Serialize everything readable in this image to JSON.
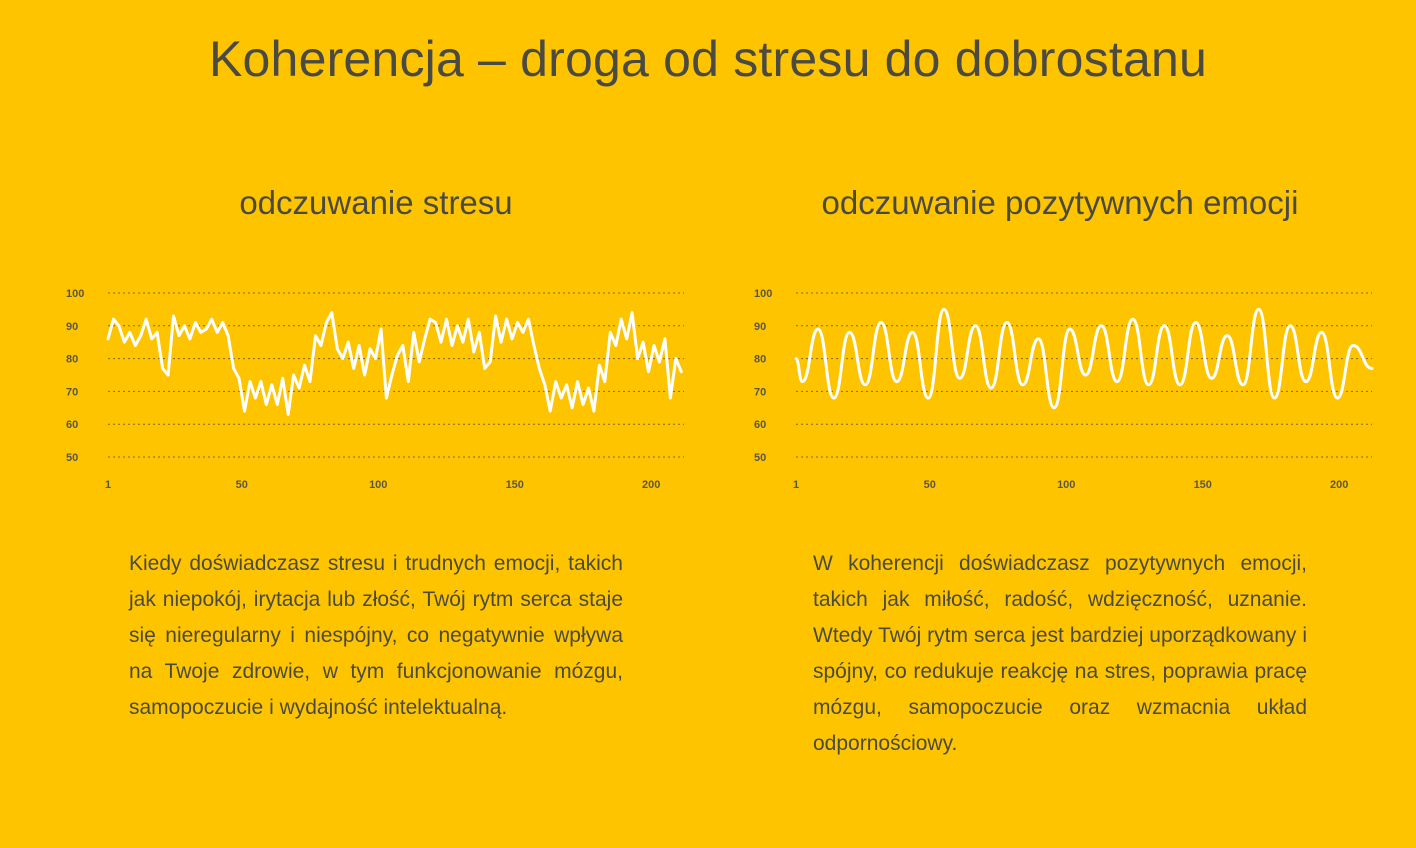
{
  "page": {
    "title": "Koherencja – droga od stresu do dobrostanu"
  },
  "panels": [
    {
      "title": "odczuwanie stresu",
      "description": "Kiedy doświadczasz stresu i trudnych emocji, takich jak niepokój, irytacja lub złość, Twój rytm serca staje się nieregularny i niespójny, co negatywnie wpływa na Twoje zdrowie, w tym funkcjonowanie mózgu, samopoczucie i wydajność intelektualną."
    },
    {
      "title": "odczuwanie pozytywnych emocji",
      "description": "W koherencji doświadczasz pozytywnych emocji, takich jak miłość, radość, wdzięczność, uznanie. Wtedy Twój rytm serca jest bardziej uporządkowany i spójny, co redukuje reakcję na stres, poprawia pracę mózgu, samopoczucie oraz wzmacnia układ odpornościowy."
    }
  ],
  "colors": {
    "background": "#FFC400",
    "line": "#FFFFFF",
    "gridline": "#7a6a2a",
    "text": "#4a4a40"
  },
  "chart_data": [
    {
      "type": "line",
      "title": "",
      "xlabel": "",
      "ylabel": "",
      "xlim": [
        1,
        212
      ],
      "ylim": [
        50,
        100
      ],
      "y_ticks": [
        100,
        90,
        80,
        70,
        60,
        50
      ],
      "x_ticks": [
        1,
        50,
        100,
        150,
        200
      ],
      "grid": "horizontal dotted",
      "series": [
        {
          "x": [
            1,
            3,
            5,
            7,
            9,
            11,
            13,
            15,
            17,
            19,
            21,
            23,
            25,
            27,
            29,
            31,
            33,
            35,
            37,
            39,
            41,
            43,
            45,
            47,
            49,
            51,
            53,
            55,
            57,
            59,
            61,
            63,
            65,
            67,
            69,
            71,
            73,
            75,
            77,
            79,
            81,
            83,
            85,
            87,
            89,
            91,
            93,
            95,
            97,
            99,
            101,
            103,
            105,
            107,
            109,
            111,
            113,
            115,
            117,
            119,
            121,
            123,
            125,
            127,
            129,
            131,
            133,
            135,
            137,
            139,
            141,
            143,
            145,
            147,
            149,
            151,
            153,
            155,
            157,
            159,
            161,
            163,
            165,
            167,
            169,
            171,
            173,
            175,
            177,
            179,
            181,
            183,
            185,
            187,
            189,
            191,
            193,
            195,
            197,
            199,
            201,
            203,
            205,
            207,
            209,
            211
          ],
          "values": [
            86,
            92,
            90,
            85,
            88,
            84,
            87,
            92,
            86,
            88,
            77,
            75,
            93,
            87,
            90,
            86,
            91,
            88,
            89,
            92,
            88,
            91,
            87,
            77,
            74,
            64,
            73,
            68,
            73,
            66,
            72,
            66,
            74,
            63,
            75,
            71,
            78,
            73,
            87,
            84,
            91,
            94,
            83,
            80,
            85,
            77,
            84,
            75,
            83,
            80,
            89,
            68,
            75,
            81,
            84,
            73,
            88,
            79,
            86,
            92,
            91,
            85,
            92,
            84,
            90,
            85,
            92,
            82,
            88,
            77,
            79,
            93,
            85,
            92,
            86,
            91,
            88,
            92,
            84,
            77,
            72,
            64,
            73,
            68,
            72,
            65,
            73,
            66,
            71,
            64,
            78,
            73,
            88,
            84,
            92,
            86,
            94,
            80,
            85,
            76,
            84,
            79,
            86,
            68,
            80,
            76
          ],
          "style": "irregular"
        }
      ]
    },
    {
      "type": "line",
      "title": "",
      "xlabel": "",
      "ylabel": "",
      "xlim": [
        1,
        212
      ],
      "ylim": [
        50,
        100
      ],
      "y_ticks": [
        100,
        90,
        80,
        70,
        60,
        50
      ],
      "x_ticks": [
        1,
        50,
        100,
        150,
        200
      ],
      "grid": "horizontal dotted",
      "series": [
        {
          "peaks": [
            89,
            88,
            91,
            88,
            95,
            90,
            91,
            86,
            89,
            90,
            92,
            90,
            91,
            87,
            95,
            90,
            88,
            84
          ],
          "troughs": [
            73,
            68,
            72,
            73,
            68,
            74,
            71,
            72,
            65,
            75,
            73,
            72,
            72,
            74,
            72,
            68,
            73,
            68
          ],
          "style": "smooth sine"
        }
      ]
    }
  ]
}
